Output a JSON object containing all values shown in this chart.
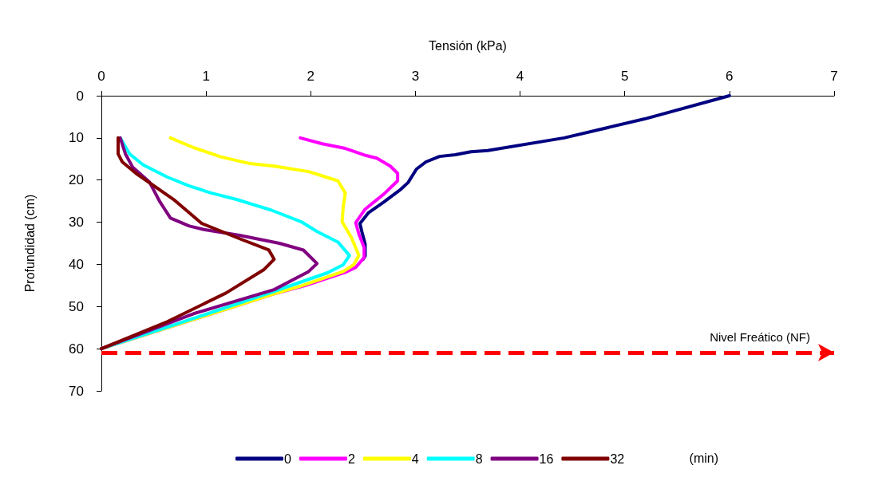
{
  "chart_data": {
    "type": "line",
    "xlabel": "Tensión (kPa)",
    "ylabel": "Profundidad (cm)",
    "legend_title": "(min)",
    "xlim": [
      0,
      7
    ],
    "xticks": [
      0,
      1,
      2,
      3,
      4,
      5,
      6,
      7
    ],
    "ylim": [
      70,
      0
    ],
    "yticks": [
      0,
      10,
      20,
      30,
      40,
      50,
      60,
      70
    ],
    "grid": false,
    "legend": "bottom",
    "marker": "none",
    "line_style": "solid",
    "series": [
      {
        "name": "0",
        "color": "#000080",
        "x": [
          6.0,
          5.19,
          4.42,
          3.69,
          3.53,
          3.38,
          3.23,
          3.1,
          3.01,
          2.93,
          2.85,
          2.7,
          2.55,
          2.47,
          2.49,
          2.52,
          2.52,
          2.5
        ],
        "values": [
          0,
          5.5,
          10,
          13,
          13.3,
          14,
          14.4,
          15.7,
          17.4,
          20.6,
          22.4,
          25.2,
          27.8,
          30.3,
          32.4,
          35.2,
          38,
          38.8
        ]
      },
      {
        "name": "2",
        "color": "#ff00ff",
        "x": [
          1.9,
          2.11,
          2.33,
          2.53,
          2.63,
          2.76,
          2.83,
          2.83,
          2.7,
          2.52,
          2.43,
          2.46,
          2.51,
          2.51,
          2.43,
          2.33,
          1.95,
          1.65,
          0
        ],
        "values": [
          10,
          11.4,
          12.5,
          14.2,
          14.8,
          16.7,
          18.4,
          20.2,
          23.3,
          26.9,
          30.1,
          32.8,
          36,
          38.4,
          40.7,
          41.9,
          45,
          47,
          60
        ]
      },
      {
        "name": "4",
        "color": "#ffff00",
        "x": [
          0.66,
          0.88,
          1.14,
          1.42,
          1.65,
          1.98,
          2.26,
          2.33,
          2.31,
          2.3,
          2.39,
          2.46,
          2.41,
          2.31,
          1.91,
          1.65,
          0
        ],
        "values": [
          10,
          12.3,
          14.5,
          16.1,
          16.7,
          18,
          20.2,
          23.1,
          26.5,
          29.9,
          33.7,
          37.9,
          40.1,
          41.7,
          45.1,
          47,
          60
        ]
      },
      {
        "name": "8",
        "color": "#00ffff",
        "x": [
          0.18,
          0.27,
          0.4,
          0.63,
          0.84,
          1.04,
          1.29,
          1.62,
          1.91,
          2.06,
          2.26,
          2.37,
          2.31,
          2.16,
          1.65,
          0.63,
          0
        ],
        "values": [
          10,
          13.8,
          16.4,
          19.3,
          21.4,
          23,
          24.6,
          27.1,
          29.9,
          32.2,
          34.7,
          37.9,
          40.1,
          42,
          46.4,
          54.9,
          60
        ]
      },
      {
        "name": "16",
        "color": "#800080",
        "x": [
          0.18,
          0.23,
          0.3,
          0.46,
          0.56,
          0.66,
          0.84,
          0.99,
          1.32,
          1.7,
          1.93,
          2.06,
          1.98,
          1.65,
          0.88,
          0
        ],
        "values": [
          10,
          13.8,
          17,
          20.5,
          25.2,
          29,
          30.9,
          31.8,
          33.1,
          35,
          36.6,
          39.8,
          41.7,
          46,
          51.7,
          60
        ]
      },
      {
        "name": "32",
        "color": "#800000",
        "x": [
          0.16,
          0.16,
          0.2,
          0.33,
          0.69,
          0.96,
          1.34,
          1.6,
          1.65,
          1.55,
          1.19,
          0.63,
          0
        ],
        "values": [
          10,
          13.8,
          15.7,
          18.4,
          24.6,
          30.3,
          34.1,
          36.6,
          38.8,
          41.3,
          46.8,
          53.6,
          60
        ]
      }
    ],
    "ref_lines": [
      {
        "axis": "y",
        "value": 61,
        "label": "Nivel Freático (NF)",
        "color": "#ff0000",
        "line_style": "dashed"
      }
    ]
  }
}
